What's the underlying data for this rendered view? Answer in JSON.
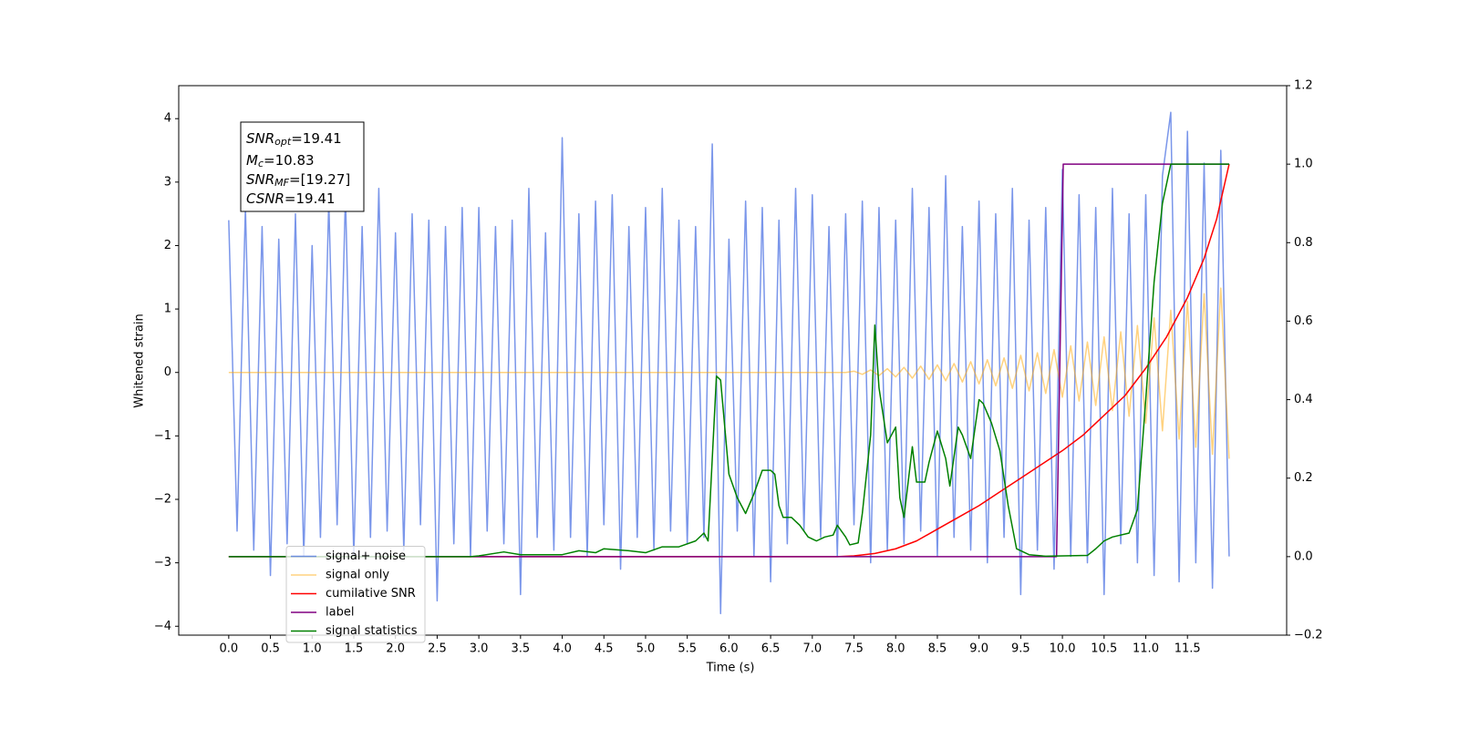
{
  "chart_data": {
    "type": "line",
    "xlabel": "Time (s)",
    "ylabel": "Whitened strain",
    "xlim": [
      -0.6,
      12.69
    ],
    "ylim": [
      -4.14,
      4.52
    ],
    "y2lim": [
      -0.2,
      1.2
    ],
    "xticks": [
      {
        "value": 0,
        "label": "0.0"
      },
      0.5,
      {
        "value": 1,
        "label": "1.0"
      },
      1.5,
      {
        "value": 2,
        "label": "2.0"
      },
      2.5,
      {
        "value": 3,
        "label": "3.0"
      },
      3.5,
      {
        "value": 4,
        "label": "4.0"
      },
      4.5,
      {
        "value": 5,
        "label": "5.0"
      },
      5.5,
      {
        "value": 6,
        "label": "6.0"
      },
      6.5,
      {
        "value": 7,
        "label": "7.0"
      },
      7.5,
      {
        "value": 8,
        "label": "8.0"
      },
      8.5,
      {
        "value": 9,
        "label": "9.0"
      },
      9.5,
      {
        "value": 10,
        "label": "10.0"
      },
      10.5,
      {
        "value": 11,
        "label": "11.0"
      },
      11.5
    ],
    "yticks": [
      {
        "value": -4,
        "label": "−4"
      },
      {
        "value": -3,
        "label": "−3"
      },
      {
        "value": -2,
        "label": "−2"
      },
      {
        "value": -1,
        "label": "−1"
      },
      0,
      1,
      2,
      3,
      4
    ],
    "y2ticks": [
      {
        "value": -0.2,
        "label": "−0.2"
      },
      {
        "value": 0,
        "label": "0.0"
      },
      0.2,
      0.4,
      0.6,
      0.8,
      {
        "value": 1,
        "label": "1.0"
      },
      1.2
    ],
    "legend": "lower left",
    "x": [
      0,
      0.1,
      0.2,
      0.3,
      0.4,
      0.5,
      0.6,
      0.7,
      0.8,
      0.9,
      1,
      1.1,
      1.2,
      1.3,
      1.4,
      1.5,
      1.6,
      1.7,
      1.8,
      1.9,
      2,
      2.1,
      2.2,
      2.3,
      2.4,
      2.5,
      2.6,
      2.7,
      2.8,
      2.9,
      3,
      3.1,
      3.2,
      3.3,
      3.4,
      3.5,
      3.6,
      3.7,
      3.8,
      3.9,
      4,
      4.1,
      4.2,
      4.3,
      4.4,
      4.5,
      4.6,
      4.7,
      4.8,
      4.9,
      5,
      5.1,
      5.2,
      5.3,
      5.4,
      5.5,
      5.6,
      5.7,
      5.8,
      5.9,
      6,
      6.1,
      6.2,
      6.3,
      6.4,
      6.5,
      6.6,
      6.7,
      6.8,
      6.9,
      7,
      7.1,
      7.2,
      7.3,
      7.4,
      7.5,
      7.6,
      7.7,
      7.8,
      7.9,
      8,
      8.1,
      8.2,
      8.3,
      8.4,
      8.5,
      8.6,
      8.7,
      8.8,
      8.9,
      9,
      9.1,
      9.2,
      9.3,
      9.4,
      9.5,
      9.6,
      9.7,
      9.8,
      9.9,
      10,
      10.1,
      10.2,
      10.3,
      10.4,
      10.5,
      10.6,
      10.7,
      10.8,
      10.9,
      11,
      11.1,
      11.2,
      11.3,
      11.4,
      11.5,
      11.6,
      11.7,
      11.8,
      11.9,
      12
    ],
    "series": [
      {
        "name": "signal+ noise",
        "color": "#4169e1",
        "alpha": 0.7,
        "values": [
          2.4,
          -2.5,
          2.6,
          -2.8,
          2.3,
          -3.2,
          2.1,
          -2.7,
          2.5,
          -2.9,
          2.0,
          -2.6,
          2.7,
          -2.4,
          2.8,
          -2.9,
          2.3,
          -2.6,
          2.9,
          -2.5,
          2.2,
          -2.8,
          2.5,
          -2.4,
          2.4,
          -3.6,
          2.3,
          -2.7,
          2.6,
          -2.9,
          2.6,
          -2.5,
          2.3,
          -2.7,
          2.4,
          -3.5,
          2.9,
          -2.6,
          2.2,
          -2.8,
          3.7,
          -2.6,
          2.5,
          -2.9,
          2.7,
          -2.4,
          2.8,
          -3.1,
          2.3,
          -2.6,
          2.6,
          -2.8,
          2.9,
          -2.5,
          2.4,
          -2.7,
          2.3,
          -2.6,
          3.6,
          -3.8,
          2.1,
          -2.5,
          2.7,
          -2.9,
          2.6,
          -3.3,
          2.4,
          -2.7,
          2.9,
          -2.5,
          2.8,
          -2.6,
          2.3,
          -2.9,
          2.5,
          -2.4,
          2.7,
          -3.0,
          2.6,
          -2.8,
          2.4,
          -2.7,
          2.9,
          -2.5,
          2.6,
          -2.9,
          3.1,
          -2.6,
          2.3,
          -2.8,
          2.7,
          -3.0,
          2.5,
          -2.6,
          2.9,
          -3.5,
          2.4,
          -2.8,
          2.6,
          -3.1,
          3.2,
          -2.9,
          2.8,
          -3.0,
          2.6,
          -3.5,
          2.9,
          -2.7,
          2.5,
          -3.0,
          2.8,
          -3.2,
          3.1,
          4.1,
          -3.3,
          3.8,
          -3.0,
          3.3,
          -3.4,
          3.5,
          -2.9
        ]
      },
      {
        "name": "signal only",
        "color": "#ffa500",
        "alpha": 0.5,
        "values": [
          0,
          0,
          0,
          0,
          0,
          0,
          0,
          0,
          0,
          0,
          0,
          0,
          0,
          0,
          0,
          0,
          0,
          0,
          0,
          0,
          0,
          0,
          0,
          0,
          0,
          0,
          0,
          0,
          0,
          0,
          0,
          0,
          0,
          0,
          0,
          0,
          0,
          0,
          0,
          0,
          0,
          0,
          0,
          0,
          0,
          0,
          0,
          0,
          0,
          0,
          0,
          0,
          0,
          0,
          0,
          0,
          0,
          0,
          0,
          0,
          0,
          0,
          0,
          0,
          0,
          0,
          0,
          0,
          0,
          0,
          0,
          0,
          0,
          0,
          0,
          0.02,
          -0.03,
          0.04,
          -0.05,
          0.06,
          -0.07,
          0.08,
          -0.09,
          0.1,
          -0.11,
          0.12,
          -0.13,
          0.14,
          -0.15,
          0.17,
          -0.18,
          0.2,
          -0.21,
          0.23,
          -0.25,
          0.27,
          -0.29,
          0.31,
          -0.33,
          0.36,
          -0.39,
          0.42,
          -0.45,
          0.48,
          -0.52,
          0.56,
          -0.6,
          0.64,
          -0.69,
          0.74,
          -0.8,
          0.86,
          -0.92,
          0.98,
          -1.05,
          1.12,
          -1.18,
          1.24,
          -1.29,
          1.33,
          -1.36
        ]
      },
      {
        "name": "cumilative SNR",
        "color": "#ff0000",
        "axis": "y2",
        "x": [
          0,
          7.3,
          7.5,
          7.75,
          8,
          8.25,
          8.5,
          8.75,
          9,
          9.25,
          9.5,
          9.75,
          10,
          10.25,
          10.5,
          10.75,
          11,
          11.25,
          11.5,
          11.7,
          11.85,
          12
        ],
        "values": [
          0,
          0,
          0.002,
          0.008,
          0.02,
          0.04,
          0.07,
          0.1,
          0.13,
          0.165,
          0.2,
          0.235,
          0.27,
          0.31,
          0.36,
          0.41,
          0.48,
          0.56,
          0.66,
          0.76,
          0.86,
          1.0
        ]
      },
      {
        "name": "label",
        "color": "#800080",
        "axis": "y2",
        "x": [
          0,
          9.93,
          10.01,
          12
        ],
        "values": [
          0,
          0,
          1,
          1
        ]
      },
      {
        "name": "signal statistics",
        "color": "#008000",
        "axis": "y2",
        "x": [
          0,
          2.9,
          3.0,
          3.3,
          3.5,
          4.0,
          4.2,
          4.4,
          4.5,
          4.8,
          5.0,
          5.2,
          5.4,
          5.6,
          5.7,
          5.75,
          5.85,
          5.9,
          6.0,
          6.1,
          6.2,
          6.3,
          6.4,
          6.5,
          6.55,
          6.6,
          6.65,
          6.75,
          6.85,
          6.95,
          7.05,
          7.15,
          7.25,
          7.3,
          7.4,
          7.45,
          7.55,
          7.6,
          7.7,
          7.75,
          7.8,
          7.9,
          8.0,
          8.05,
          8.1,
          8.2,
          8.25,
          8.35,
          8.4,
          8.5,
          8.6,
          8.65,
          8.75,
          8.8,
          8.9,
          9.0,
          9.05,
          9.15,
          9.25,
          9.35,
          9.45,
          9.6,
          9.8,
          10.3,
          10.4,
          10.5,
          10.6,
          10.8,
          10.9,
          11.0,
          11.1,
          11.2,
          11.3,
          12.0
        ],
        "values": [
          0,
          0,
          0.002,
          0.012,
          0.005,
          0.005,
          0.015,
          0.01,
          0.02,
          0.015,
          0.01,
          0.025,
          0.025,
          0.04,
          0.06,
          0.04,
          0.46,
          0.45,
          0.21,
          0.15,
          0.11,
          0.16,
          0.22,
          0.22,
          0.21,
          0.13,
          0.1,
          0.1,
          0.08,
          0.05,
          0.04,
          0.05,
          0.055,
          0.08,
          0.05,
          0.03,
          0.035,
          0.11,
          0.31,
          0.59,
          0.43,
          0.29,
          0.33,
          0.15,
          0.1,
          0.28,
          0.19,
          0.19,
          0.24,
          0.32,
          0.25,
          0.18,
          0.33,
          0.31,
          0.25,
          0.4,
          0.39,
          0.34,
          0.27,
          0.13,
          0.02,
          0.005,
          0.001,
          0.003,
          0.02,
          0.04,
          0.05,
          0.06,
          0.12,
          0.4,
          0.7,
          0.9,
          1.0,
          1.0
        ]
      }
    ],
    "annotations": [
      {
        "base": "SNR",
        "subscript": "opt",
        "suffix": "=19.41"
      },
      {
        "base": "M",
        "subscript": "c",
        "suffix": "=10.83"
      },
      {
        "base": "SNR",
        "subscript": "MF",
        "suffix": "=[19.27]"
      },
      {
        "base": "CSNR",
        "suffix": "=19.41"
      }
    ]
  }
}
